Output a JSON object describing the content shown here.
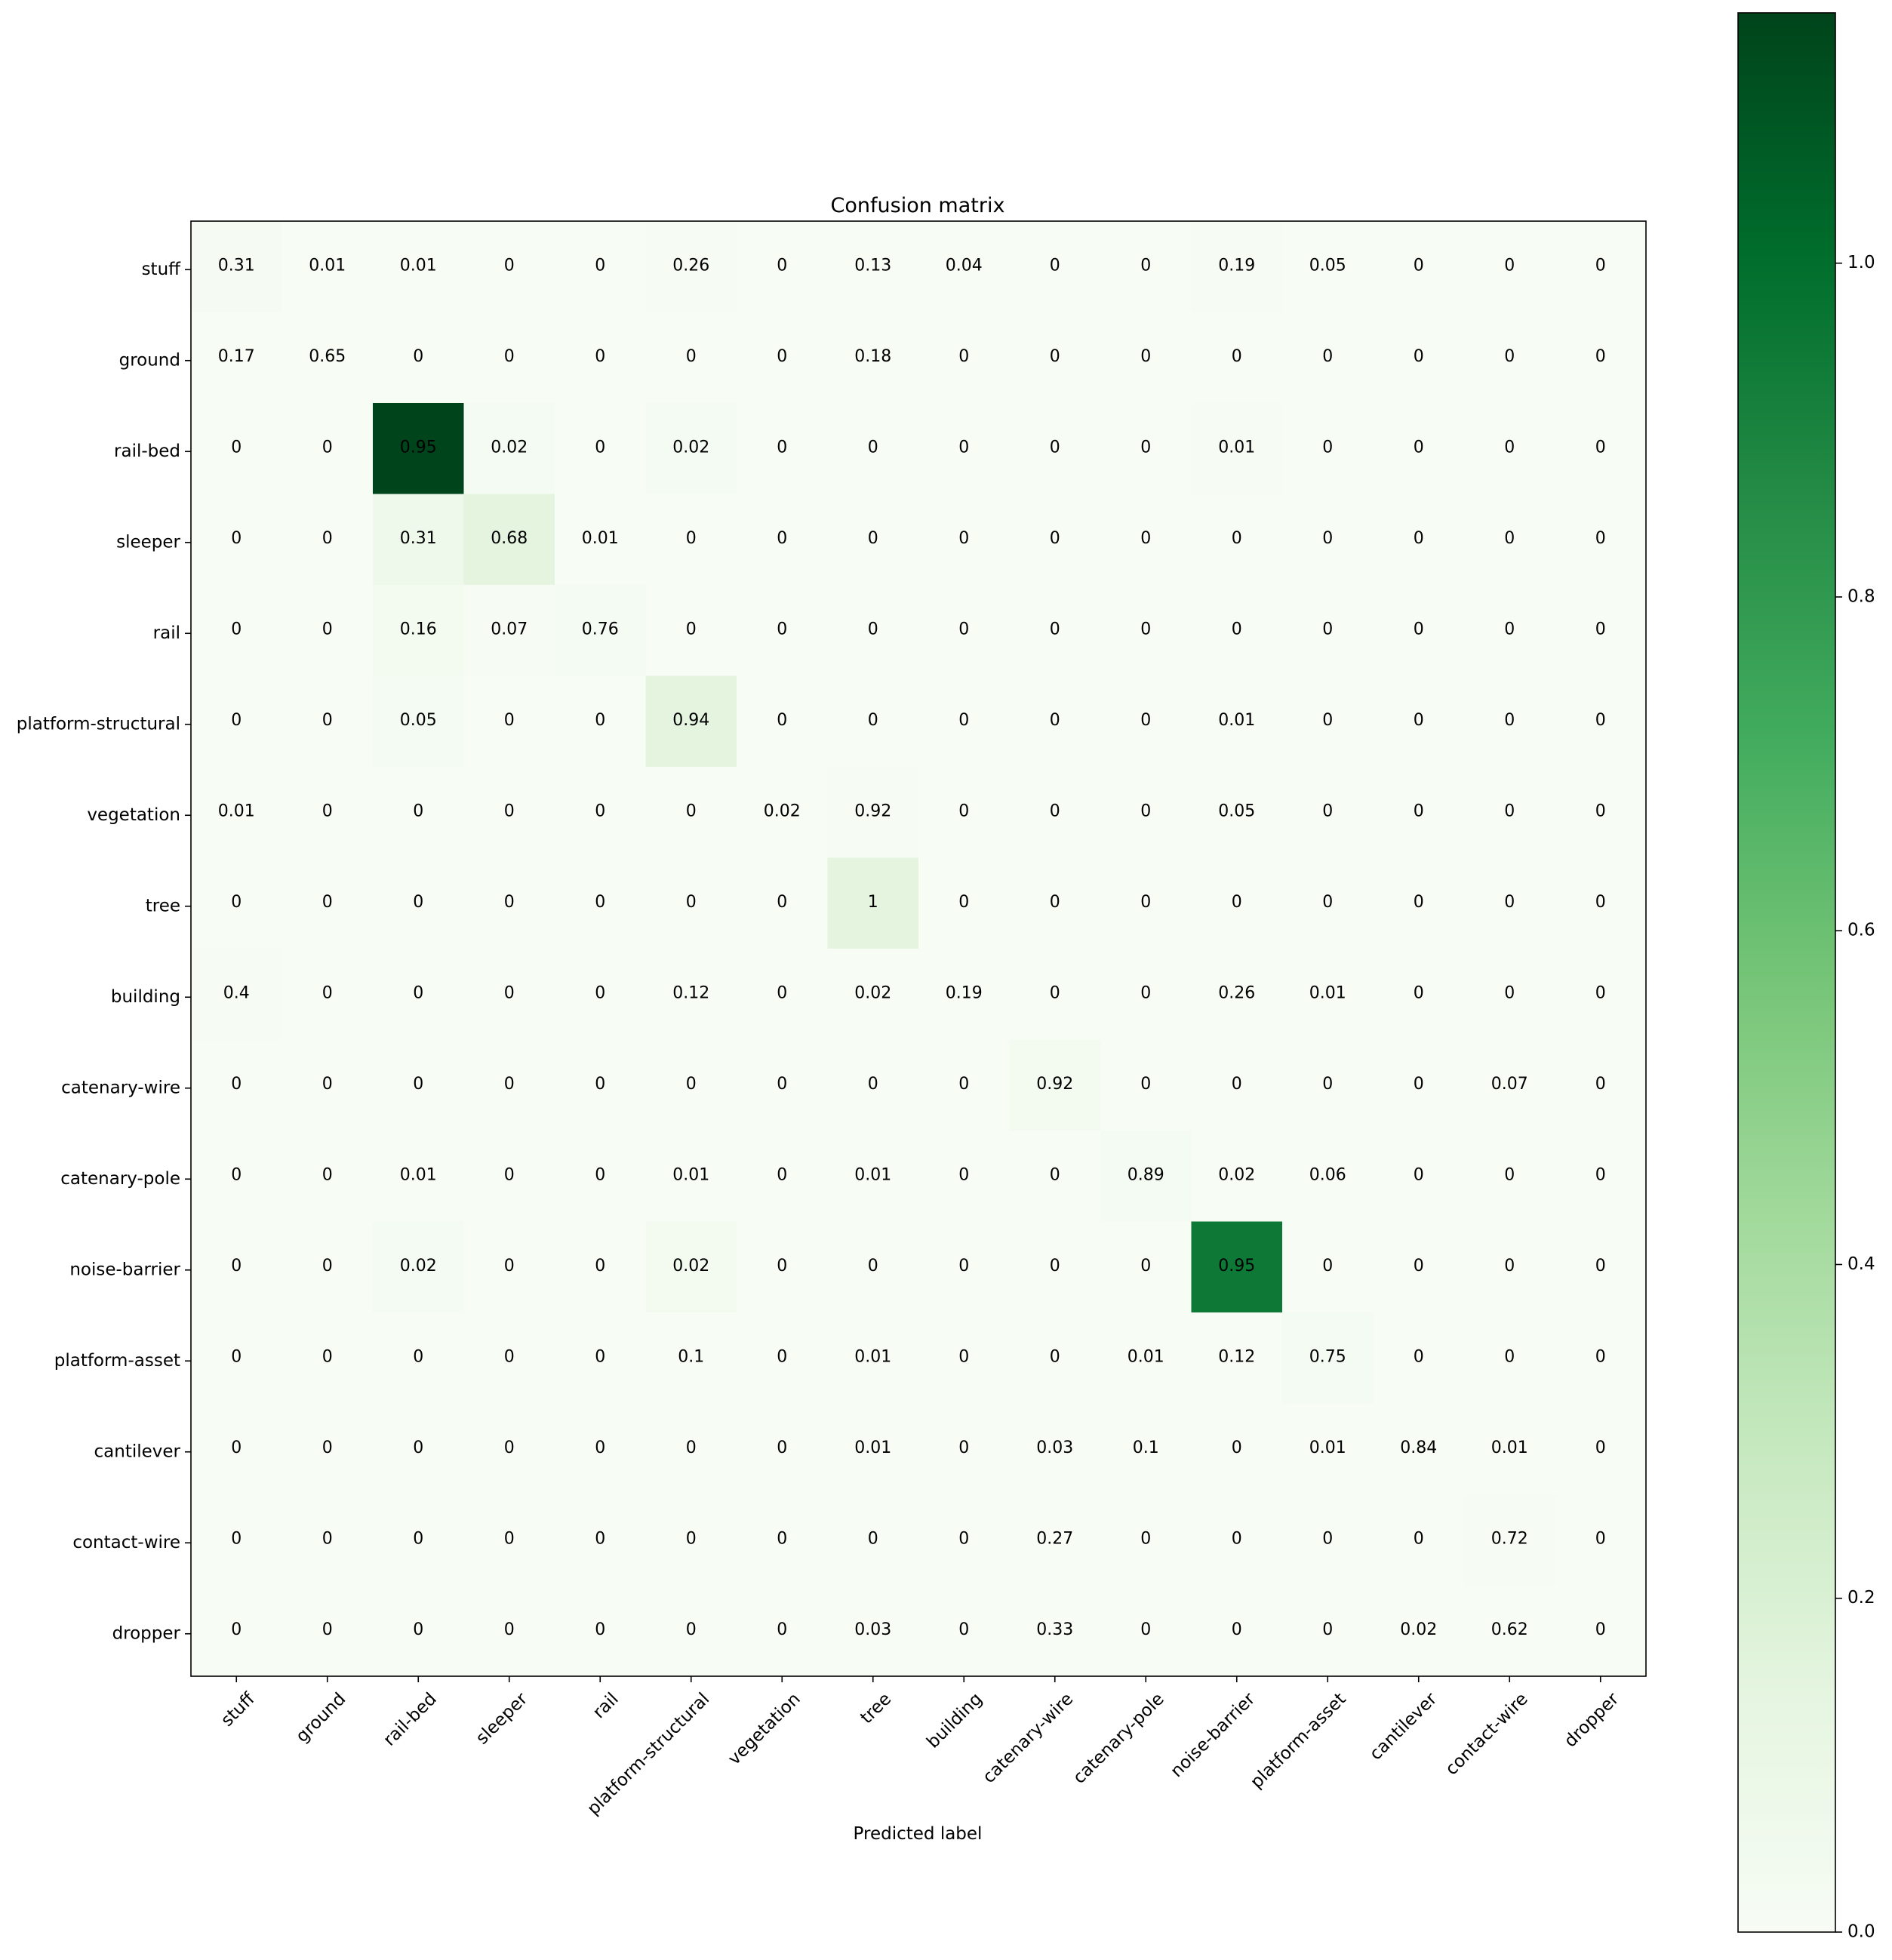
{
  "chart_data": {
    "type": "heatmap",
    "title": "Confusion matrix",
    "xlabel": "Predicted label",
    "ylabel": "",
    "x_categories": [
      "stuff",
      "ground",
      "rail-bed",
      "sleeper",
      "rail",
      "platform-structural",
      "vegetation",
      "tree",
      "building",
      "catenary-wire",
      "catenary-pole",
      "noise-barrier",
      "platform-asset",
      "cantilever",
      "contact-wire",
      "dropper"
    ],
    "y_categories": [
      "stuff",
      "ground",
      "rail-bed",
      "sleeper",
      "rail",
      "platform-structural",
      "vegetation",
      "tree",
      "building",
      "catenary-wire",
      "catenary-pole",
      "noise-barrier",
      "platform-asset",
      "cantilever",
      "contact-wire",
      "dropper"
    ],
    "values": [
      [
        0.31,
        0.01,
        0.01,
        0.0,
        0.0,
        0.26,
        0.0,
        0.13,
        0.04,
        0.0,
        0.0,
        0.19,
        0.05,
        0.0,
        0.0,
        0.0
      ],
      [
        0.17,
        0.65,
        0.0,
        0.0,
        0.0,
        0.0,
        0.0,
        0.18,
        0.0,
        0.0,
        0.0,
        0.0,
        0.0,
        0.0,
        0.0,
        0.0
      ],
      [
        0.0,
        0.0,
        0.95,
        0.02,
        0.0,
        0.02,
        0.0,
        0.0,
        0.0,
        0.0,
        0.0,
        0.01,
        0.0,
        0.0,
        0.0,
        0.0
      ],
      [
        0.0,
        0.0,
        0.31,
        0.68,
        0.01,
        0.0,
        0.0,
        0.0,
        0.0,
        0.0,
        0.0,
        0.0,
        0.0,
        0.0,
        0.0,
        0.0
      ],
      [
        0.0,
        0.0,
        0.16,
        0.07,
        0.76,
        0.0,
        0.0,
        0.0,
        0.0,
        0.0,
        0.0,
        0.0,
        0.0,
        0.0,
        0.0,
        0.0
      ],
      [
        0.0,
        0.0,
        0.05,
        0.0,
        0.0,
        0.94,
        0.0,
        0.0,
        0.0,
        0.0,
        0.0,
        0.01,
        0.0,
        0.0,
        0.0,
        0.0
      ],
      [
        0.01,
        0.0,
        0.0,
        0.0,
        0.0,
        0.0,
        0.02,
        0.92,
        0.0,
        0.0,
        0.0,
        0.05,
        0.0,
        0.0,
        0.0,
        0.0
      ],
      [
        0.0,
        0.0,
        0.0,
        0.0,
        0.0,
        0.0,
        0.0,
        1.0,
        0.0,
        0.0,
        0.0,
        0.0,
        0.0,
        0.0,
        0.0,
        0.0
      ],
      [
        0.4,
        0.0,
        0.0,
        0.0,
        0.0,
        0.12,
        0.0,
        0.02,
        0.19,
        0.0,
        0.0,
        0.26,
        0.01,
        0.0,
        0.0,
        0.0
      ],
      [
        0.0,
        0.0,
        0.0,
        0.0,
        0.0,
        0.0,
        0.0,
        0.0,
        0.0,
        0.92,
        0.0,
        0.0,
        0.0,
        0.0,
        0.07,
        0.0
      ],
      [
        0.0,
        0.0,
        0.01,
        0.0,
        0.0,
        0.01,
        0.0,
        0.01,
        0.0,
        0.0,
        0.89,
        0.02,
        0.06,
        0.0,
        0.0,
        0.0
      ],
      [
        0.0,
        0.0,
        0.02,
        0.0,
        0.0,
        0.02,
        0.0,
        0.0,
        0.0,
        0.0,
        0.0,
        0.95,
        0.0,
        0.0,
        0.0,
        0.0
      ],
      [
        0.0,
        0.0,
        0.0,
        0.0,
        0.0,
        0.1,
        0.0,
        0.01,
        0.0,
        0.0,
        0.01,
        0.12,
        0.75,
        0.0,
        0.0,
        0.0
      ],
      [
        0.0,
        0.0,
        0.0,
        0.0,
        0.0,
        0.0,
        0.0,
        0.01,
        0.0,
        0.03,
        0.1,
        0.0,
        0.01,
        0.84,
        0.01,
        0.0
      ],
      [
        0.0,
        0.0,
        0.0,
        0.0,
        0.0,
        0.0,
        0.0,
        0.0,
        0.0,
        0.27,
        0.0,
        0.0,
        0.0,
        0.0,
        0.72,
        0.0
      ],
      [
        0.0,
        0.0,
        0.0,
        0.0,
        0.0,
        0.0,
        0.0,
        0.03,
        0.0,
        0.33,
        0.0,
        0.0,
        0.0,
        0.02,
        0.62,
        0.0
      ]
    ],
    "cell_shading": {
      "stuff|stuff": 0.012,
      "stuff|platform-structural": 0.01,
      "stuff|noise-barrier": 0.007,
      "rail-bed|rail-bed": 1.15,
      "rail-bed|sleeper": 0.02,
      "rail-bed|platform-structural": 0.02,
      "rail-bed|noise-barrier": 0.01,
      "sleeper|rail-bed": 0.07,
      "sleeper|sleeper": 0.15,
      "rail|rail-bed": 0.03,
      "rail|sleeper": 0.01,
      "rail|rail": 0.02,
      "platform-structural|rail-bed": 0.02,
      "platform-structural|platform-structural": 0.15,
      "vegetation|tree": 0.01,
      "tree|tree": 0.15,
      "building|stuff": 0.004,
      "catenary-wire|catenary-wire": 0.03,
      "catenary-pole|catenary-pole": 0.02,
      "noise-barrier|rail-bed": 0.02,
      "noise-barrier|platform-structural": 0.03,
      "noise-barrier|noise-barrier": 0.95,
      "platform-asset|platform-asset": 0.02,
      "contact-wire|contact-wire": 0.01
    },
    "threshold_white_text": 0.57,
    "colormap": "Greens",
    "color_range": [
      0,
      1.15
    ],
    "colorbar": {
      "ticks": [
        0.0,
        0.2,
        0.4,
        0.6,
        0.8,
        1.0
      ],
      "tick_labels": [
        "0.0",
        "0.2",
        "0.4",
        "0.6",
        "0.8",
        "1.0"
      ]
    },
    "grid": false,
    "legend": "colorbar-right"
  }
}
